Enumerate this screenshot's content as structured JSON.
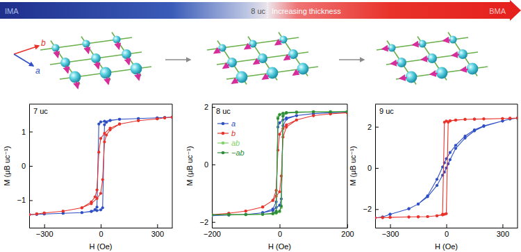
{
  "header": {
    "start": "IMA",
    "marker": "8 uc",
    "label": "Increasing thickness",
    "end": "BMA"
  },
  "lattice": {
    "axis_b": "b",
    "axis_a": "a"
  },
  "chart_data": [
    {
      "type": "line",
      "title": "7 uc",
      "xlabel": "H (Oe)",
      "ylabel": "M (μB uc⁻¹)",
      "xlim": [
        -380,
        380
      ],
      "xticks": [
        {
          "value": -300,
          "label": "−300"
        },
        0,
        300
      ],
      "ylim": [
        -1.8,
        1.8
      ],
      "yticks": [
        {
          "value": -1,
          "label": "−1"
        },
        0,
        1
      ],
      "marker": "circle",
      "series": [
        {
          "color": "#2f4fc4",
          "x": [
            380,
            340,
            300,
            200,
            100,
            50,
            20,
            0,
            -10,
            -20,
            -30,
            -50,
            -100,
            -200,
            -300,
            -340,
            -380,
            -340,
            -300,
            -200,
            -100,
            -50,
            -20,
            0,
            10,
            20,
            30,
            50,
            100,
            200,
            300,
            340,
            380
          ],
          "values": [
            1.42,
            1.41,
            1.4,
            1.38,
            1.36,
            1.33,
            1.3,
            1.28,
            1.22,
            -1.2,
            -1.27,
            -1.32,
            -1.36,
            -1.38,
            -1.4,
            -1.41,
            -1.42,
            -1.41,
            -1.4,
            -1.38,
            -1.36,
            -1.33,
            -1.3,
            -1.28,
            -1.22,
            1.2,
            1.27,
            1.32,
            1.36,
            1.38,
            1.4,
            1.41,
            1.42
          ]
        },
        {
          "color": "#e8322a",
          "x": [
            380,
            340,
            300,
            200,
            100,
            50,
            20,
            0,
            -10,
            -20,
            -30,
            -50,
            -100,
            -200,
            -300,
            -340,
            -380,
            -340,
            -300,
            -200,
            -100,
            -50,
            -20,
            0,
            10,
            20,
            30,
            50,
            100,
            200,
            300,
            340,
            380
          ],
          "values": [
            1.42,
            1.4,
            1.37,
            1.32,
            1.22,
            1.1,
            0.95,
            0.8,
            0.4,
            -0.7,
            -0.9,
            -1.05,
            -1.22,
            -1.32,
            -1.37,
            -1.4,
            -1.42,
            -1.4,
            -1.37,
            -1.32,
            -1.22,
            -1.1,
            -0.95,
            -0.8,
            -0.4,
            0.7,
            0.9,
            1.05,
            1.22,
            1.32,
            1.37,
            1.4,
            1.42
          ]
        }
      ]
    },
    {
      "type": "line",
      "title": "8 uc",
      "xlabel": "H (Oe)",
      "ylabel": "M (μB uc⁻¹)",
      "xlim": [
        -200,
        200
      ],
      "xticks": [
        {
          "value": -200,
          "label": "−200"
        },
        0,
        200
      ],
      "ylim": [
        -2.2,
        2.1
      ],
      "yticks": [
        {
          "value": -2,
          "label": "−2"
        },
        0,
        2
      ],
      "marker": "circle",
      "legend": "upper left",
      "series": [
        {
          "name": "a",
          "color": "#2f4fc4",
          "x": [
            200,
            150,
            100,
            50,
            20,
            10,
            0,
            -5,
            -10,
            -20,
            -50,
            -100,
            -150,
            -200,
            -150,
            -100,
            -50,
            -20,
            -10,
            0,
            5,
            10,
            20,
            50,
            100,
            150,
            200
          ],
          "values": [
            1.82,
            1.8,
            1.77,
            1.7,
            1.62,
            1.55,
            1.45,
            1.3,
            -1.3,
            -1.55,
            -1.68,
            -1.74,
            -1.76,
            -1.78,
            -1.76,
            -1.74,
            -1.68,
            -1.6,
            -1.5,
            -1.42,
            -1.2,
            1.35,
            1.58,
            1.7,
            1.77,
            1.8,
            1.82
          ]
        },
        {
          "name": "b",
          "color": "#e8322a",
          "x": [
            200,
            150,
            100,
            50,
            20,
            10,
            0,
            -5,
            -10,
            -20,
            -50,
            -100,
            -150,
            -200,
            -150,
            -100,
            -50,
            -20,
            -10,
            0,
            5,
            10,
            20,
            50,
            100,
            150,
            200
          ],
          "values": [
            1.8,
            1.76,
            1.7,
            1.55,
            1.38,
            1.25,
            1.05,
            0.5,
            -0.9,
            -1.25,
            -1.48,
            -1.62,
            -1.7,
            -1.75,
            -1.7,
            -1.62,
            -1.48,
            -1.25,
            -1.1,
            -0.95,
            -0.4,
            0.95,
            1.3,
            1.55,
            1.7,
            1.76,
            1.8
          ]
        },
        {
          "name": "ab",
          "color": "#7fd36a",
          "x": [
            200,
            150,
            100,
            50,
            20,
            10,
            0,
            -5,
            -10,
            -20,
            -50,
            -100,
            -150,
            -200,
            -150,
            -100,
            -50,
            -20,
            -10,
            0,
            5,
            10,
            20,
            50,
            100,
            150,
            200
          ],
          "values": [
            1.85,
            1.84,
            1.84,
            1.83,
            1.81,
            1.79,
            1.75,
            1.65,
            -1.65,
            -1.72,
            -1.74,
            -1.75,
            -1.75,
            -1.76,
            -1.75,
            -1.75,
            -1.74,
            -1.72,
            -1.7,
            -1.65,
            -1.5,
            1.7,
            1.8,
            1.82,
            1.84,
            1.84,
            1.85
          ]
        },
        {
          "name": "−ab",
          "color": "#2e8b3a",
          "x": [
            200,
            150,
            100,
            50,
            20,
            10,
            0,
            -5,
            -10,
            -20,
            -50,
            -100,
            -150,
            -200,
            -150,
            -100,
            -50,
            -20,
            -10,
            0,
            5,
            10,
            20,
            50,
            100,
            150,
            200
          ],
          "values": [
            1.84,
            1.83,
            1.83,
            1.82,
            1.8,
            1.78,
            1.73,
            1.6,
            -1.62,
            -1.7,
            -1.73,
            -1.74,
            -1.75,
            -1.75,
            -1.74,
            -1.74,
            -1.73,
            -1.71,
            -1.68,
            -1.62,
            -1.45,
            1.68,
            1.79,
            1.81,
            1.83,
            1.83,
            1.84
          ]
        }
      ]
    },
    {
      "type": "line",
      "title": "9 uc",
      "xlabel": "H (Oe)",
      "ylabel": "M (μB uc⁻¹)",
      "xlim": [
        -380,
        380
      ],
      "xticks": [
        {
          "value": -300,
          "label": "−300"
        },
        0,
        300
      ],
      "ylim": [
        -2.9,
        3.1
      ],
      "yticks": [
        {
          "value": -2,
          "label": "−2"
        },
        0,
        2
      ],
      "marker": "circle",
      "series": [
        {
          "color": "#2f4fc4",
          "x": [
            380,
            340,
            300,
            200,
            150,
            100,
            50,
            20,
            0,
            -10,
            -20,
            -50,
            -100,
            -150,
            -200,
            -300,
            -340,
            -380,
            -340,
            -300,
            -200,
            -150,
            -100,
            -50,
            -20,
            -10,
            0,
            10,
            20,
            50,
            100,
            150,
            200,
            300,
            340,
            380
          ],
          "values": [
            2.42,
            2.38,
            2.28,
            2.05,
            1.85,
            1.55,
            1.1,
            0.75,
            0.45,
            0.25,
            0.05,
            -0.55,
            -1.35,
            -1.75,
            -1.98,
            -2.25,
            -2.38,
            -2.42,
            -2.38,
            -2.25,
            -1.98,
            -1.75,
            -1.4,
            -0.85,
            -0.35,
            -0.2,
            0.0,
            0.2,
            0.4,
            0.95,
            1.45,
            1.8,
            2.02,
            2.28,
            2.38,
            2.42
          ]
        },
        {
          "color": "#e8322a",
          "x": [
            380,
            340,
            300,
            200,
            150,
            100,
            50,
            20,
            0,
            -10,
            -20,
            -50,
            -100,
            -150,
            -200,
            -300,
            -340,
            -380,
            -340,
            -300,
            -200,
            -150,
            -100,
            -50,
            -20,
            -10,
            0,
            10,
            20,
            50,
            100,
            150,
            200,
            300,
            340,
            380
          ],
          "values": [
            2.42,
            2.41,
            2.4,
            2.38,
            2.37,
            2.36,
            2.33,
            2.3,
            2.28,
            2.22,
            -2.25,
            -2.32,
            -2.36,
            -2.37,
            -2.38,
            -2.4,
            -2.41,
            -2.42,
            -2.41,
            -2.4,
            -2.38,
            -2.37,
            -2.36,
            -2.32,
            -2.28,
            -2.25,
            -2.22,
            2.22,
            2.28,
            2.32,
            2.36,
            2.37,
            2.38,
            2.4,
            2.41,
            2.42
          ]
        }
      ]
    }
  ]
}
